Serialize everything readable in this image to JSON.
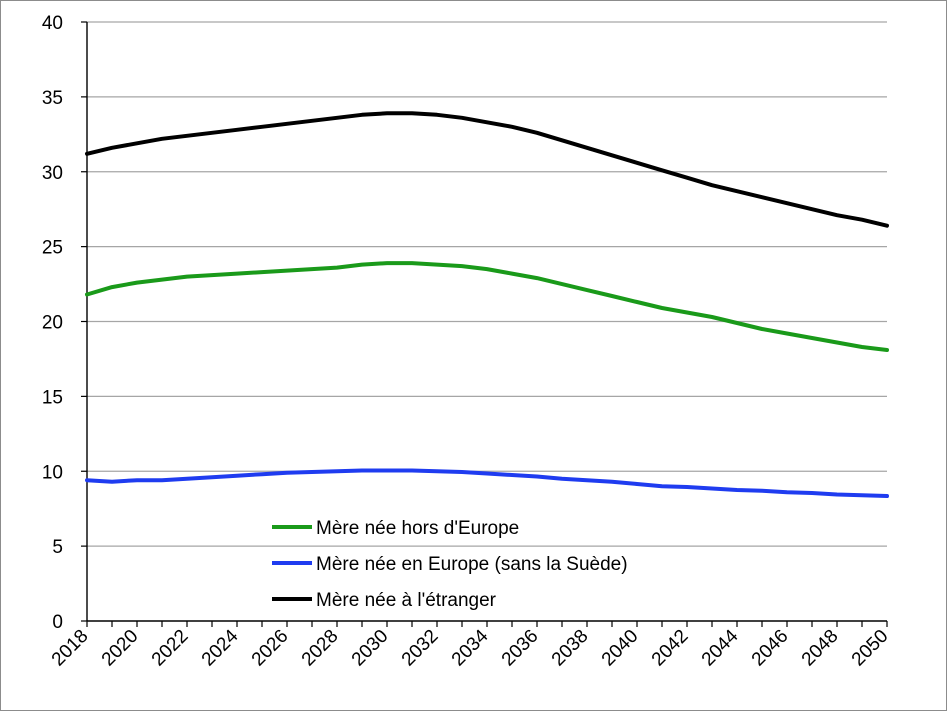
{
  "chart_data": {
    "type": "line",
    "title": "",
    "xlabel": "",
    "ylabel": "",
    "xlim": [
      2018,
      2050
    ],
    "ylim": [
      0,
      40
    ],
    "grid": true,
    "legend_position": "bottom-left",
    "y_ticks": [
      "0",
      "5",
      "10",
      "15",
      "20",
      "25",
      "30",
      "35",
      "40"
    ],
    "x_ticks": [
      "2018",
      "2020",
      "2022",
      "2024",
      "2026",
      "2028",
      "2030",
      "2032",
      "2034",
      "2036",
      "2038",
      "2040",
      "2042",
      "2044",
      "2046",
      "2048",
      "2050"
    ],
    "x": [
      2018,
      2019,
      2020,
      2021,
      2022,
      2023,
      2024,
      2025,
      2026,
      2027,
      2028,
      2029,
      2030,
      2031,
      2032,
      2033,
      2034,
      2035,
      2036,
      2037,
      2038,
      2039,
      2040,
      2041,
      2042,
      2043,
      2044,
      2045,
      2046,
      2047,
      2048,
      2049,
      2050
    ],
    "series": [
      {
        "name": "Mère née hors d'Europe",
        "color": "#1a9a1a",
        "values": [
          21.8,
          22.3,
          22.6,
          22.8,
          23.0,
          23.1,
          23.2,
          23.3,
          23.4,
          23.5,
          23.6,
          23.8,
          23.9,
          23.9,
          23.8,
          23.7,
          23.5,
          23.2,
          22.9,
          22.5,
          22.1,
          21.7,
          21.3,
          20.9,
          20.6,
          20.3,
          19.9,
          19.5,
          19.2,
          18.9,
          18.6,
          18.3,
          18.1
        ]
      },
      {
        "name": "Mère née en Europe (sans la Suède)",
        "color": "#1f3cf0",
        "values": [
          9.4,
          9.3,
          9.4,
          9.4,
          9.5,
          9.6,
          9.7,
          9.8,
          9.9,
          9.95,
          10.0,
          10.05,
          10.05,
          10.05,
          10.0,
          9.95,
          9.85,
          9.75,
          9.65,
          9.5,
          9.4,
          9.3,
          9.15,
          9.0,
          8.95,
          8.85,
          8.75,
          8.7,
          8.6,
          8.55,
          8.45,
          8.4,
          8.35
        ]
      },
      {
        "name": "Mère née à l'étranger",
        "color": "#000000",
        "values": [
          31.2,
          31.6,
          31.9,
          32.2,
          32.4,
          32.6,
          32.8,
          33.0,
          33.2,
          33.4,
          33.6,
          33.8,
          33.9,
          33.9,
          33.8,
          33.6,
          33.3,
          33.0,
          32.6,
          32.1,
          31.6,
          31.1,
          30.6,
          30.1,
          29.6,
          29.1,
          28.7,
          28.3,
          27.9,
          27.5,
          27.1,
          26.8,
          26.4
        ]
      }
    ]
  }
}
